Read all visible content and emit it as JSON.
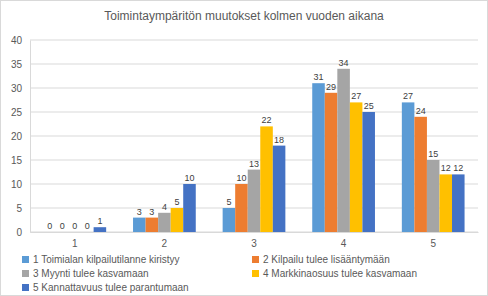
{
  "chart_data": {
    "type": "bar",
    "title": "Toimintaympäritön muutokset kolmen vuoden aikana",
    "categories": [
      "1",
      "2",
      "3",
      "4",
      "5"
    ],
    "series": [
      {
        "name": "1 Toimialan kilpailutilanne kiristyy",
        "color": "#5b9bd5",
        "values": [
          0,
          3,
          5,
          31,
          27
        ]
      },
      {
        "name": "2 Kilpailu tulee lisääntymään",
        "color": "#ed7d31",
        "values": [
          0,
          3,
          10,
          29,
          24
        ]
      },
      {
        "name": "3 Myynti tulee kasvamaan",
        "color": "#a5a5a5",
        "values": [
          0,
          4,
          13,
          34,
          15
        ]
      },
      {
        "name": "4 Markkinaosuus tulee kasvamaan",
        "color": "#ffc000",
        "values": [
          0,
          5,
          22,
          27,
          12
        ]
      },
      {
        "name": "5 Kannattavuus tulee parantumaan",
        "color": "#4472c4",
        "values": [
          1,
          10,
          18,
          25,
          12
        ]
      }
    ],
    "ylim": [
      0,
      40
    ],
    "yticks": [
      0,
      5,
      10,
      15,
      20,
      25,
      30,
      35,
      40
    ],
    "grid": true,
    "data_labels": true,
    "legend": "bottom"
  }
}
